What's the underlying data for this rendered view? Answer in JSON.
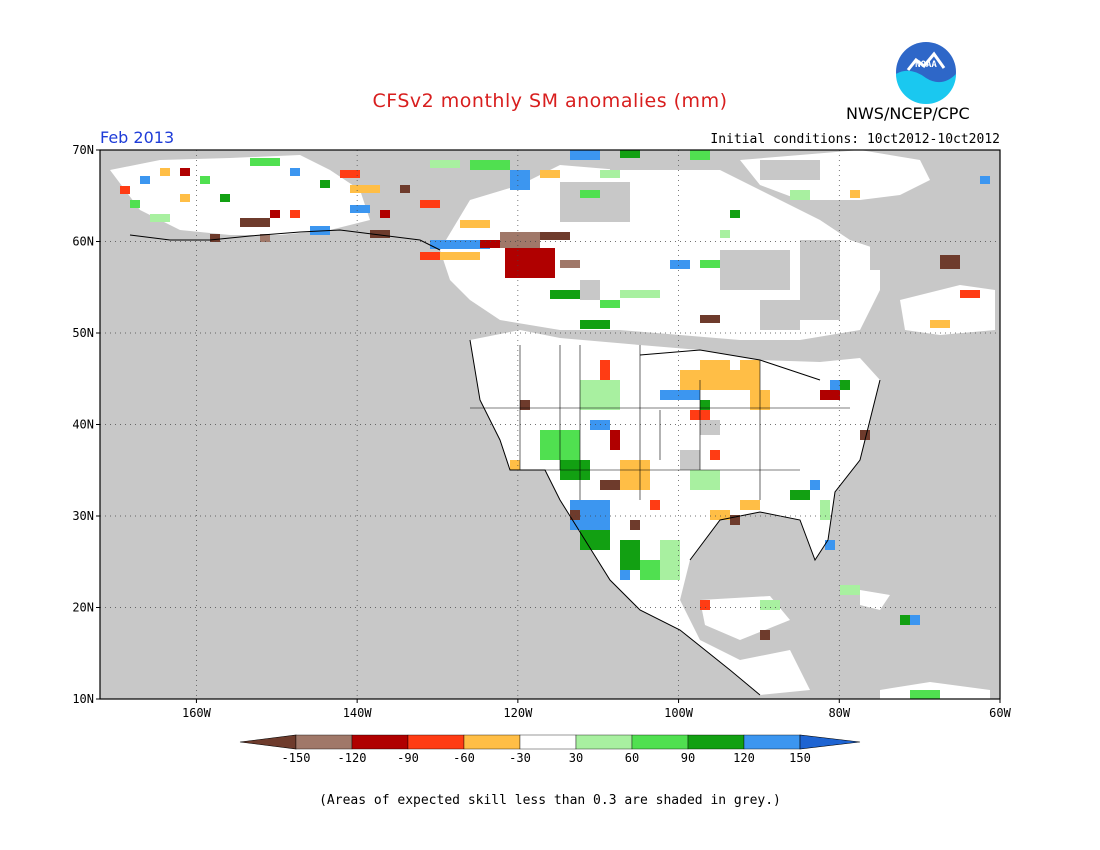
{
  "header": {
    "title": "CFSv2 monthly SM anomalies (mm)",
    "agency": "NWS/NCEP/CPC",
    "logo_text": "NOAA",
    "period": "Feb 2013",
    "initial_conditions": "Initial conditions: 10ct2012-10ct2012"
  },
  "map": {
    "projection": "lat-lon",
    "lon_range": [
      -172,
      -60
    ],
    "lat_range": [
      10,
      70
    ],
    "lat_ticks": [
      {
        "value": 70,
        "label": "70N"
      },
      {
        "value": 60,
        "label": "60N"
      },
      {
        "value": 50,
        "label": "50N"
      },
      {
        "value": 40,
        "label": "40N"
      },
      {
        "value": 30,
        "label": "30N"
      },
      {
        "value": 20,
        "label": "20N"
      },
      {
        "value": 10,
        "label": "10N"
      }
    ],
    "lon_ticks": [
      {
        "value": -160,
        "label": "160W"
      },
      {
        "value": -140,
        "label": "140W"
      },
      {
        "value": -120,
        "label": "120W"
      },
      {
        "value": -100,
        "label": "100W"
      },
      {
        "value": -80,
        "label": "80W"
      },
      {
        "value": -60,
        "label": "60W"
      }
    ],
    "grid_lines": "dotted",
    "low_skill_color": "#c8c8c8"
  },
  "legend": {
    "boundaries": [
      "-150",
      "-120",
      "-90",
      "-60",
      "-30",
      "30",
      "60",
      "90",
      "120",
      "150"
    ],
    "colors": [
      "#6e3b2c",
      "#a07869",
      "#b00000",
      "#ff3c14",
      "#ffbe46",
      "#ffffff",
      "#a8f0a0",
      "#50e050",
      "#12a012",
      "#3c96f0",
      "#1e64d2"
    ],
    "note": "(Areas of expected skill less than 0.3 are shaded in grey.)"
  },
  "anomaly_colors": {
    "brown": "#6e3b2c",
    "red": "#b00000",
    "orange_red": "#ff3c14",
    "orange": "#ffbe46",
    "light_green": "#a8f0a0",
    "green": "#50e050",
    "dark_green": "#12a012",
    "blue": "#3c96f0"
  }
}
